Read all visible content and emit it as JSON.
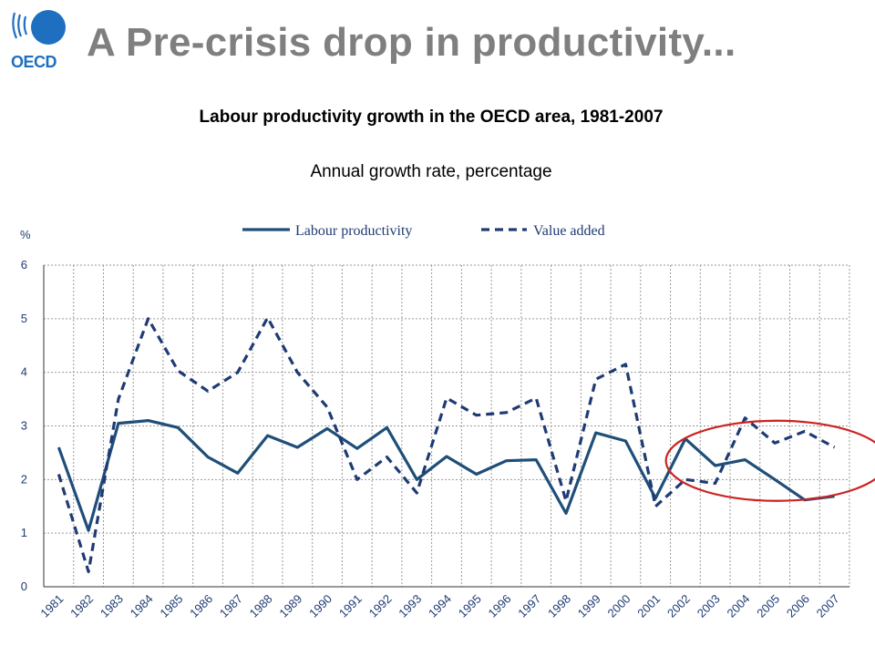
{
  "slide": {
    "title": "A Pre-crisis drop in productivity...",
    "logo_text": "OECD",
    "logo_color": "#1f6fc0"
  },
  "chart_data": {
    "type": "line",
    "title": "Labour productivity growth in the OECD area, 1981-2007",
    "subtitle": "Annual growth rate, percentage",
    "ylabel": "%",
    "ylim": [
      0,
      6
    ],
    "yticks": [
      0,
      1,
      2,
      3,
      4,
      5,
      6
    ],
    "grid": true,
    "legend_placement": "top",
    "categories": [
      "1981",
      "1982",
      "1983",
      "1984",
      "1985",
      "1986",
      "1987",
      "1988",
      "1989",
      "1990",
      "1991",
      "1992",
      "1993",
      "1994",
      "1995",
      "1996",
      "1997",
      "1998",
      "1999",
      "2000",
      "2001",
      "2002",
      "2003",
      "2004",
      "2005",
      "2006",
      "2007"
    ],
    "series": [
      {
        "name": "Labour productivity",
        "style": "solid",
        "color": "#1f4e79",
        "values": [
          2.6,
          1.05,
          3.05,
          3.1,
          2.97,
          2.42,
          2.12,
          2.82,
          2.6,
          2.95,
          2.58,
          2.97,
          2.0,
          2.43,
          2.1,
          2.35,
          2.37,
          1.37,
          2.87,
          2.72,
          1.65,
          2.76,
          2.26,
          2.37,
          2.0,
          1.62,
          1.69
        ]
      },
      {
        "name": "Value added",
        "style": "dashed",
        "color": "#1f3b73",
        "values": [
          2.1,
          0.28,
          3.5,
          5.0,
          4.03,
          3.65,
          4.0,
          5.02,
          4.0,
          3.35,
          2.0,
          2.42,
          1.75,
          3.52,
          3.2,
          3.25,
          3.52,
          1.6,
          3.87,
          4.15,
          1.5,
          2.0,
          1.93,
          3.15,
          2.68,
          2.9,
          2.6
        ]
      }
    ],
    "annotation": {
      "shape": "ellipse",
      "color": "#cc2222",
      "covers_categories": [
        "2003",
        "2007"
      ]
    }
  }
}
